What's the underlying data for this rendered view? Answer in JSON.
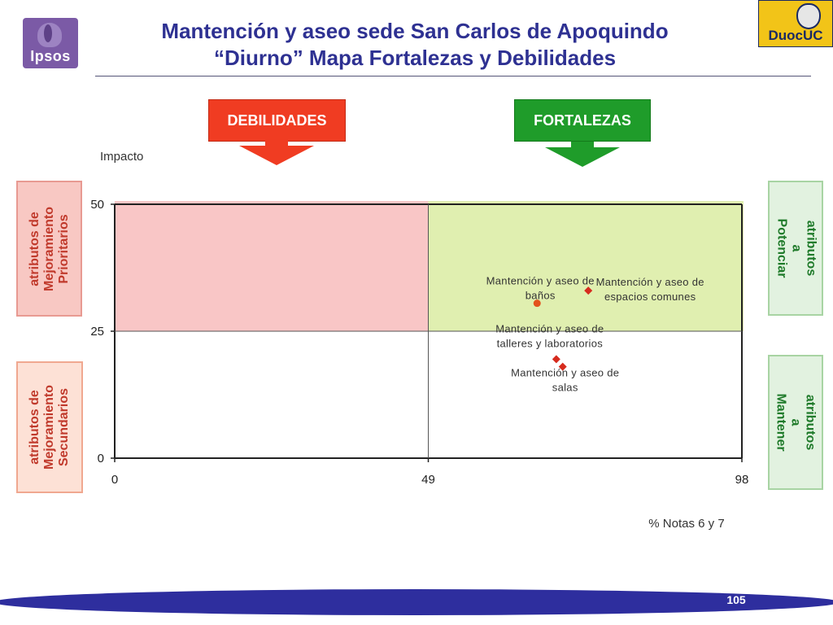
{
  "logos": {
    "ipsos": "Ipsos",
    "duoc": "DuocUC"
  },
  "title": {
    "line1": "Mantención y aseo sede San Carlos de Apoquindo",
    "line2": "“Diurno” Mapa Fortalezas y Debilidades"
  },
  "quadrant_headers": {
    "debilidades": "DEBILIDADES",
    "fortalezas": "FORTALEZAS"
  },
  "side_labels": {
    "prioritarios": "atributos de\nMejoramiento\nPrioritarios",
    "secundarios": "atributos de\nMejoramiento\nSecundarios",
    "potenciar": "atributos a\nPotenciar",
    "mantener": "atributos a\nMantener"
  },
  "colors": {
    "title": "#2e3192",
    "debilidades": "#f03c22",
    "fortalezas": "#1f9c2a",
    "quadrant_pink": "#f9c6c6",
    "quadrant_green": "#e0efb0",
    "marker_circle": "#e3521d",
    "marker_diamond": "#d62b1e",
    "footer_band": "#2e2e9e"
  },
  "chart_data": {
    "type": "scatter",
    "xlabel": "% Notas 6 y 7",
    "ylabel": "Impacto",
    "xlim": [
      0,
      98
    ],
    "ylim": [
      0,
      50
    ],
    "xticks": [
      0,
      49,
      98
    ],
    "yticks": [
      0,
      25,
      50
    ],
    "x_divider": 49,
    "y_divider": 25,
    "grid": false,
    "points": [
      {
        "label": "Mantención y aseo de baños",
        "x": 66,
        "y": 30.5,
        "marker": "circle"
      },
      {
        "label": "Mantención y aseo de espacios comunes",
        "x": 74,
        "y": 33,
        "marker": "diamond"
      },
      {
        "label": "Mantención y aseo de talleres y laboratorios",
        "x": 69,
        "y": 19.5,
        "marker": "diamond"
      },
      {
        "label": "Mantención y aseo de salas",
        "x": 70,
        "y": 18,
        "marker": "diamond"
      }
    ]
  },
  "footer": {
    "page_number": "105"
  }
}
